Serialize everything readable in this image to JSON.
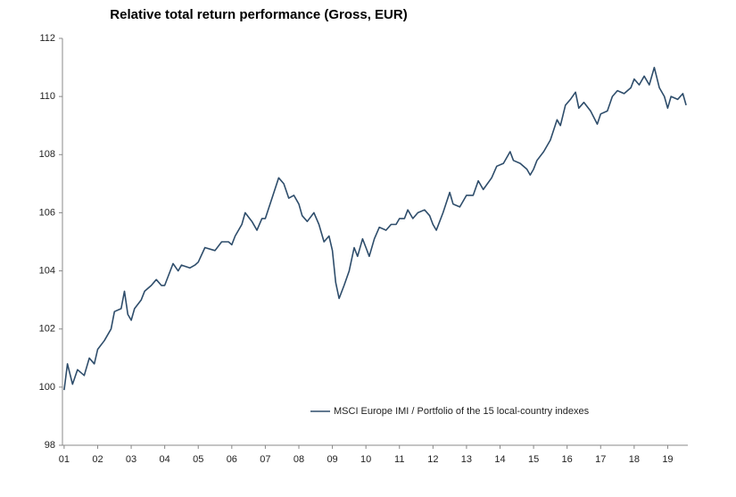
{
  "chart_data": {
    "type": "line",
    "title": "Relative total return performance (Gross, EUR)",
    "x": [
      2001.0,
      2001.1,
      2001.25,
      2001.4,
      2001.6,
      2001.75,
      2001.9,
      2002.0,
      2002.2,
      2002.4,
      2002.5,
      2002.7,
      2002.8,
      2002.9,
      2003.0,
      2003.1,
      2003.3,
      2003.4,
      2003.6,
      2003.75,
      2003.9,
      2004.0,
      2004.25,
      2004.4,
      2004.5,
      2004.75,
      2004.9,
      2005.0,
      2005.2,
      2005.5,
      2005.7,
      2005.9,
      2006.0,
      2006.1,
      2006.3,
      2006.4,
      2006.6,
      2006.75,
      2006.9,
      2007.0,
      2007.2,
      2007.4,
      2007.55,
      2007.7,
      2007.85,
      2008.0,
      2008.1,
      2008.25,
      2008.45,
      2008.6,
      2008.75,
      2008.9,
      2009.0,
      2009.1,
      2009.2,
      2009.35,
      2009.5,
      2009.65,
      2009.75,
      2009.9,
      2010.0,
      2010.1,
      2010.25,
      2010.4,
      2010.6,
      2010.75,
      2010.9,
      2011.0,
      2011.15,
      2011.25,
      2011.4,
      2011.55,
      2011.75,
      2011.9,
      2012.0,
      2012.1,
      2012.3,
      2012.5,
      2012.6,
      2012.8,
      2013.0,
      2013.2,
      2013.35,
      2013.5,
      2013.75,
      2013.9,
      2014.1,
      2014.3,
      2014.4,
      2014.6,
      2014.8,
      2014.9,
      2015.0,
      2015.1,
      2015.3,
      2015.5,
      2015.7,
      2015.8,
      2015.95,
      2016.1,
      2016.25,
      2016.35,
      2016.5,
      2016.7,
      2016.9,
      2017.0,
      2017.2,
      2017.35,
      2017.5,
      2017.7,
      2017.9,
      2018.0,
      2018.15,
      2018.3,
      2018.45,
      2018.6,
      2018.75,
      2018.9,
      2019.0,
      2019.1,
      2019.3,
      2019.45,
      2019.55
    ],
    "series": [
      {
        "name": "MSCI Europe IMI / Portfolio of the 15 local-country indexes",
        "color": "#2e4d6b",
        "values": [
          99.9,
          100.8,
          100.1,
          100.6,
          100.4,
          101.0,
          100.8,
          101.3,
          101.6,
          102.0,
          102.6,
          102.7,
          103.3,
          102.5,
          102.3,
          102.7,
          103.0,
          103.3,
          103.5,
          103.7,
          103.5,
          103.5,
          104.25,
          104.0,
          104.2,
          104.1,
          104.2,
          104.3,
          104.8,
          104.7,
          105.0,
          105.0,
          104.9,
          105.2,
          105.6,
          106.0,
          105.7,
          105.4,
          105.8,
          105.8,
          106.5,
          107.2,
          107.0,
          106.5,
          106.6,
          106.3,
          105.9,
          105.7,
          106.0,
          105.6,
          105.0,
          105.2,
          104.7,
          103.6,
          103.05,
          103.5,
          104.0,
          104.8,
          104.5,
          105.1,
          104.8,
          104.5,
          105.1,
          105.5,
          105.4,
          105.6,
          105.6,
          105.8,
          105.8,
          106.1,
          105.8,
          106.0,
          106.1,
          105.9,
          105.6,
          105.4,
          106.0,
          106.7,
          106.3,
          106.2,
          106.6,
          106.6,
          107.1,
          106.8,
          107.2,
          107.6,
          107.7,
          108.1,
          107.8,
          107.7,
          107.5,
          107.3,
          107.5,
          107.8,
          108.1,
          108.5,
          109.2,
          109.0,
          109.7,
          109.9,
          110.15,
          109.6,
          109.8,
          109.5,
          109.05,
          109.4,
          109.5,
          110.0,
          110.2,
          110.1,
          110.3,
          110.6,
          110.4,
          110.7,
          110.4,
          111.0,
          110.3,
          110.0,
          109.6,
          110.0,
          109.9,
          110.1,
          109.7
        ]
      }
    ],
    "xlim": [
      2000.95,
      2019.6
    ],
    "xticks": [
      {
        "value": 2001,
        "label": "01"
      },
      {
        "value": 2002,
        "label": "02"
      },
      {
        "value": 2003,
        "label": "03"
      },
      {
        "value": 2004,
        "label": "04"
      },
      {
        "value": 2005,
        "label": "05"
      },
      {
        "value": 2006,
        "label": "06"
      },
      {
        "value": 2007,
        "label": "07"
      },
      {
        "value": 2008,
        "label": "08"
      },
      {
        "value": 2009,
        "label": "09"
      },
      {
        "value": 2010,
        "label": "10"
      },
      {
        "value": 2011,
        "label": "11"
      },
      {
        "value": 2012,
        "label": "12"
      },
      {
        "value": 2013,
        "label": "13"
      },
      {
        "value": 2014,
        "label": "14"
      },
      {
        "value": 2015,
        "label": "15"
      },
      {
        "value": 2016,
        "label": "16"
      },
      {
        "value": 2017,
        "label": "17"
      },
      {
        "value": 2018,
        "label": "18"
      },
      {
        "value": 2019,
        "label": "19"
      }
    ],
    "ylim": [
      98,
      112
    ],
    "yticks": [
      98,
      100,
      102,
      104,
      106,
      108,
      110,
      112
    ],
    "grid": false,
    "legend": "lower-center"
  }
}
